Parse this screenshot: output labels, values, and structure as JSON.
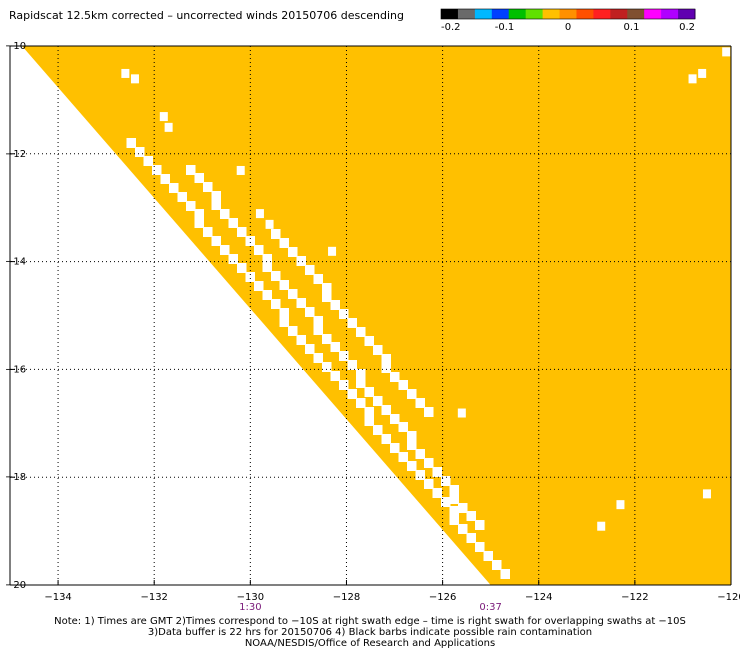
{
  "title": "Rapidscat 12.5km corrected – uncorrected winds 20150706 descending",
  "colorbar": {
    "colors": [
      "#000000",
      "#6a6a6a",
      "#00b8ff",
      "#0040ff",
      "#00c000",
      "#60e000",
      "#ffc000",
      "#ff9000",
      "#ff5000",
      "#ff2020",
      "#c02020",
      "#805030",
      "#ff00ff",
      "#b000ff",
      "#6000b0"
    ],
    "tick_labels": [
      "-0.2",
      "-0.1",
      "0",
      "0.1",
      "0.2"
    ]
  },
  "chart_data": {
    "type": "heatmap",
    "title": "Rapidscat 12.5km corrected – uncorrected winds 20150706 descending",
    "x_ticks": [
      "−134",
      "−132",
      "−130",
      "−128",
      "−126",
      "−124",
      "−122",
      "−120"
    ],
    "y_ticks": [
      "−10",
      "−12",
      "−14",
      "−16",
      "−18",
      "−20"
    ],
    "xlim": [
      -135,
      -120
    ],
    "ylim": [
      -20,
      -10
    ],
    "grid": true,
    "fill_value": 0,
    "fill_color": "#ffc000",
    "swath_edge": [
      [
        -134.75,
        -10.0
      ],
      [
        -125.0,
        -20.0
      ]
    ],
    "gap_strips": [
      {
        "start": [
          -132.5,
          -11.7
        ],
        "end": [
          -124.8,
          -19.7
        ]
      },
      {
        "start": [
          -131.3,
          -12.2
        ],
        "end": [
          -125.3,
          -18.8
        ]
      },
      {
        "start": [
          -129.5,
          -13.4
        ],
        "end": [
          -126.4,
          -16.7
        ]
      }
    ],
    "missing_cells": [
      [
        -132.6,
        -10.5
      ],
      [
        -132.4,
        -10.6
      ],
      [
        -131.8,
        -11.3
      ],
      [
        -131.7,
        -11.5
      ],
      [
        -130.2,
        -12.3
      ],
      [
        -129.8,
        -13.1
      ],
      [
        -129.6,
        -13.3
      ],
      [
        -128.3,
        -13.8
      ],
      [
        -125.6,
        -16.8
      ],
      [
        -122.3,
        -18.5
      ],
      [
        -122.7,
        -18.9
      ],
      [
        -120.6,
        -10.5
      ],
      [
        -120.8,
        -10.6
      ],
      [
        -120.1,
        -10.1
      ],
      [
        -120.5,
        -18.3
      ]
    ],
    "time_labels": [
      {
        "lon": -130,
        "text": "1:30"
      },
      {
        "lon": -125,
        "text": "0:37"
      }
    ]
  },
  "notes": [
    "Note: 1) Times are GMT 2)Times correspond to −10S at right swath edge – time is right swath for overlapping swaths at −10S",
    "3)Data buffer is 22 hrs for 20150706 4) Black barbs indicate possible rain contamination",
    "NOAA/NESDIS/Office of Research and Applications"
  ]
}
